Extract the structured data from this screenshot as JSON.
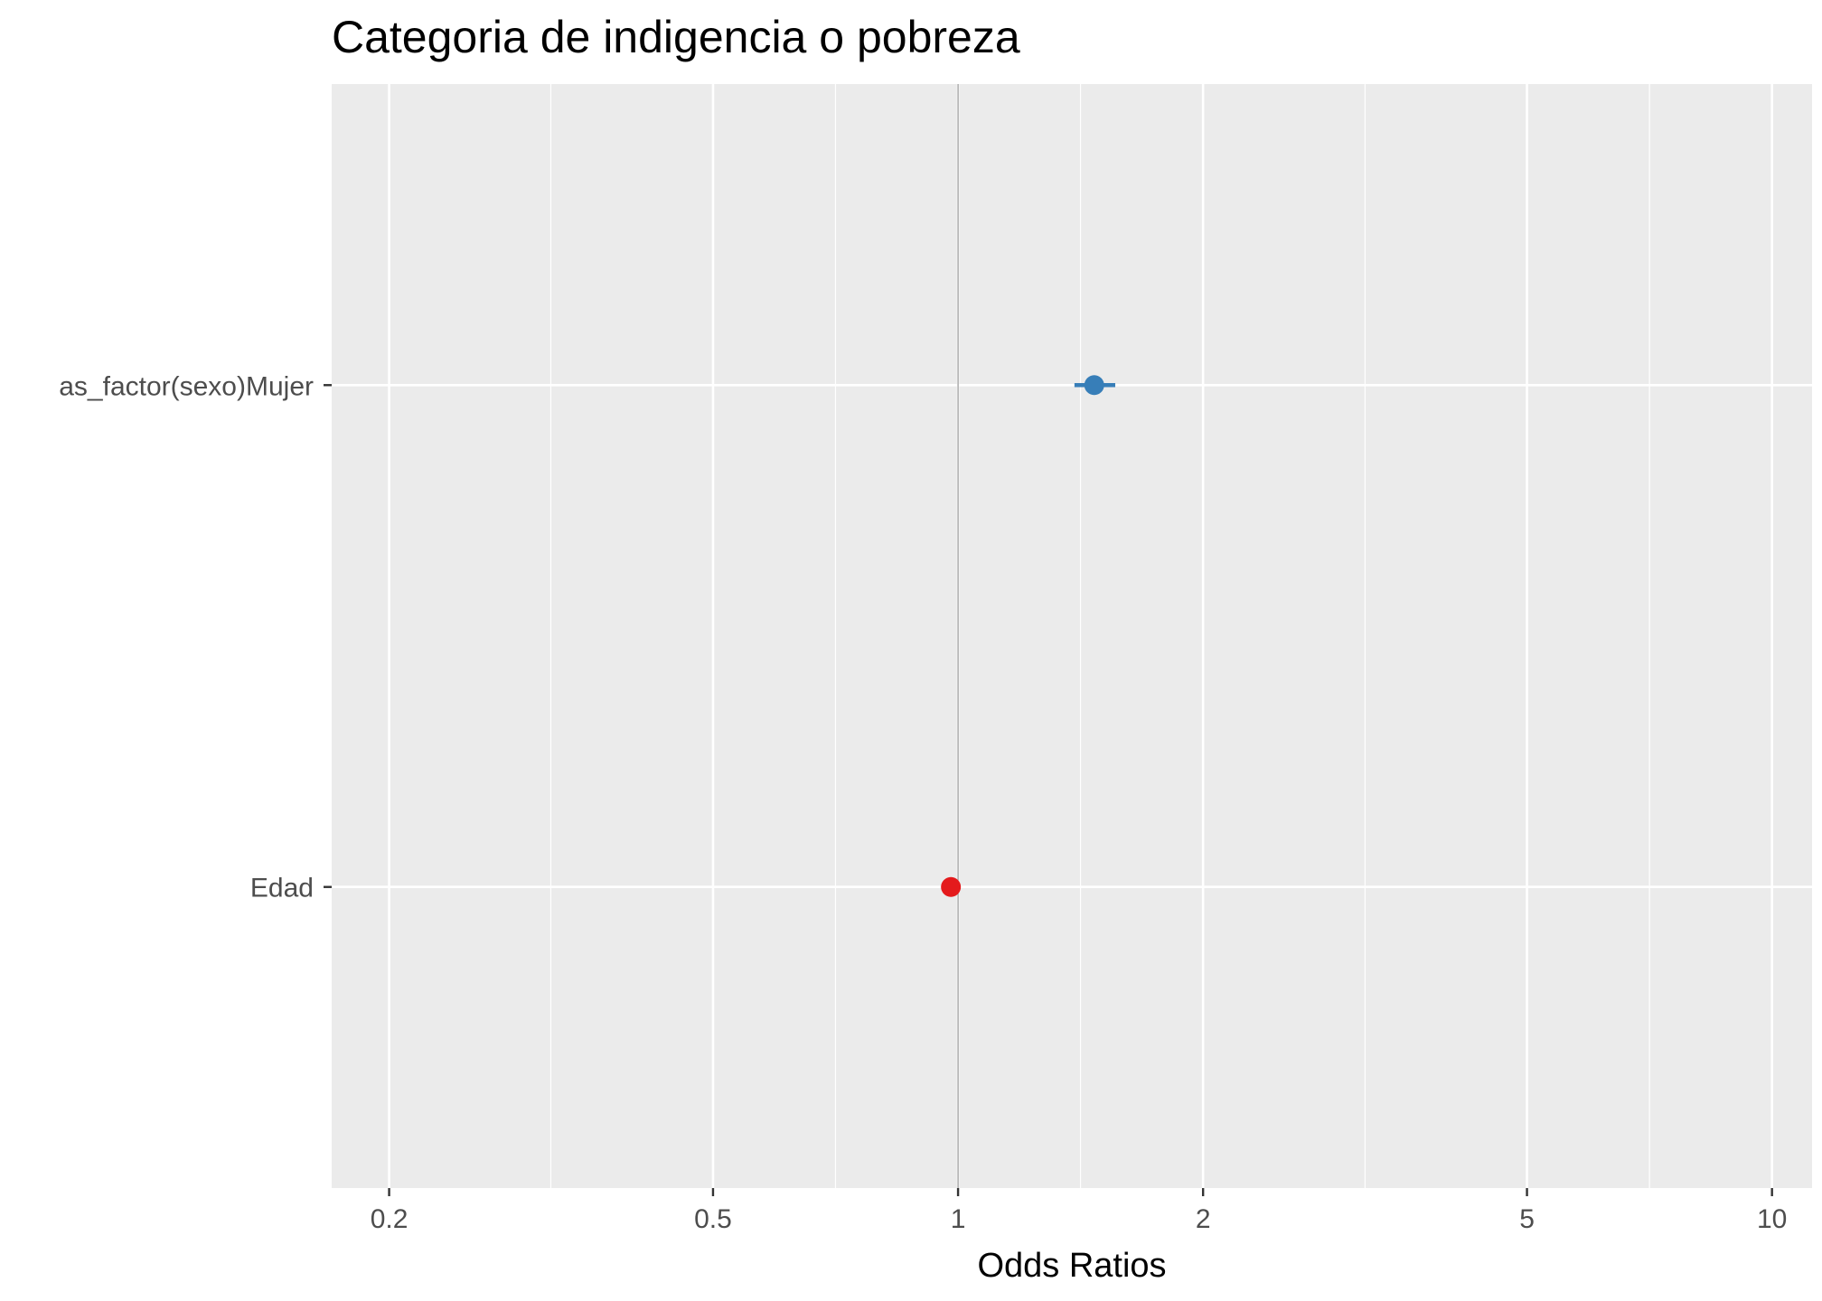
{
  "chart_data": {
    "type": "scatter",
    "title": "Categoria de indigencia o pobreza",
    "xlabel": "Odds Ratios",
    "ylabel": "",
    "x_scale": "log10",
    "xlim": [
      0.17,
      11.2
    ],
    "x_ticks": [
      {
        "value": 0.2,
        "label": "0.2"
      },
      {
        "value": 0.5,
        "label": "0.5"
      },
      {
        "value": 1,
        "label": "1"
      },
      {
        "value": 2,
        "label": "2"
      },
      {
        "value": 5,
        "label": "5"
      },
      {
        "value": 10,
        "label": "10"
      }
    ],
    "x_minor_gridlines": [
      0.316,
      0.707,
      1.414,
      3.162,
      7.071
    ],
    "reference_line_x": 1,
    "categories": [
      "as_factor(sexo)Mujer",
      "Edad"
    ],
    "points": [
      {
        "term": "as_factor(sexo)Mujer",
        "estimate": 1.47,
        "conf_low": 1.39,
        "conf_high": 1.56,
        "color": "#377eb8"
      },
      {
        "term": "Edad",
        "estimate": 0.98,
        "conf_low": 0.975,
        "conf_high": 0.985,
        "color": "#e41a1c"
      }
    ],
    "grid": true,
    "legend": "none",
    "panel_background": "#ebebeb",
    "gridline_color": "#ffffff",
    "reference_line_color": "#808080"
  }
}
